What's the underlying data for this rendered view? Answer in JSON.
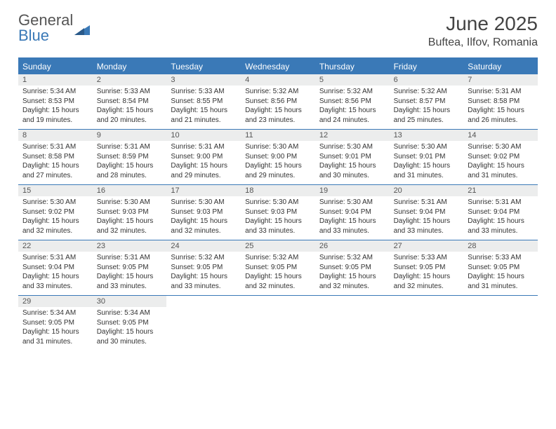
{
  "logo": {
    "word1": "General",
    "word2": "Blue"
  },
  "title": "June 2025",
  "location": "Buftea, Ilfov, Romania",
  "colors": {
    "header_bg": "#3a79b7",
    "header_text": "#ffffff",
    "daynum_bg": "#eceded",
    "border": "#3a79b7",
    "page_bg": "#ffffff",
    "text": "#333333"
  },
  "weekdays": [
    "Sunday",
    "Monday",
    "Tuesday",
    "Wednesday",
    "Thursday",
    "Friday",
    "Saturday"
  ],
  "weeks": [
    [
      {
        "n": "1",
        "sunrise": "Sunrise: 5:34 AM",
        "sunset": "Sunset: 8:53 PM",
        "d1": "Daylight: 15 hours",
        "d2": "and 19 minutes."
      },
      {
        "n": "2",
        "sunrise": "Sunrise: 5:33 AM",
        "sunset": "Sunset: 8:54 PM",
        "d1": "Daylight: 15 hours",
        "d2": "and 20 minutes."
      },
      {
        "n": "3",
        "sunrise": "Sunrise: 5:33 AM",
        "sunset": "Sunset: 8:55 PM",
        "d1": "Daylight: 15 hours",
        "d2": "and 21 minutes."
      },
      {
        "n": "4",
        "sunrise": "Sunrise: 5:32 AM",
        "sunset": "Sunset: 8:56 PM",
        "d1": "Daylight: 15 hours",
        "d2": "and 23 minutes."
      },
      {
        "n": "5",
        "sunrise": "Sunrise: 5:32 AM",
        "sunset": "Sunset: 8:56 PM",
        "d1": "Daylight: 15 hours",
        "d2": "and 24 minutes."
      },
      {
        "n": "6",
        "sunrise": "Sunrise: 5:32 AM",
        "sunset": "Sunset: 8:57 PM",
        "d1": "Daylight: 15 hours",
        "d2": "and 25 minutes."
      },
      {
        "n": "7",
        "sunrise": "Sunrise: 5:31 AM",
        "sunset": "Sunset: 8:58 PM",
        "d1": "Daylight: 15 hours",
        "d2": "and 26 minutes."
      }
    ],
    [
      {
        "n": "8",
        "sunrise": "Sunrise: 5:31 AM",
        "sunset": "Sunset: 8:58 PM",
        "d1": "Daylight: 15 hours",
        "d2": "and 27 minutes."
      },
      {
        "n": "9",
        "sunrise": "Sunrise: 5:31 AM",
        "sunset": "Sunset: 8:59 PM",
        "d1": "Daylight: 15 hours",
        "d2": "and 28 minutes."
      },
      {
        "n": "10",
        "sunrise": "Sunrise: 5:31 AM",
        "sunset": "Sunset: 9:00 PM",
        "d1": "Daylight: 15 hours",
        "d2": "and 29 minutes."
      },
      {
        "n": "11",
        "sunrise": "Sunrise: 5:30 AM",
        "sunset": "Sunset: 9:00 PM",
        "d1": "Daylight: 15 hours",
        "d2": "and 29 minutes."
      },
      {
        "n": "12",
        "sunrise": "Sunrise: 5:30 AM",
        "sunset": "Sunset: 9:01 PM",
        "d1": "Daylight: 15 hours",
        "d2": "and 30 minutes."
      },
      {
        "n": "13",
        "sunrise": "Sunrise: 5:30 AM",
        "sunset": "Sunset: 9:01 PM",
        "d1": "Daylight: 15 hours",
        "d2": "and 31 minutes."
      },
      {
        "n": "14",
        "sunrise": "Sunrise: 5:30 AM",
        "sunset": "Sunset: 9:02 PM",
        "d1": "Daylight: 15 hours",
        "d2": "and 31 minutes."
      }
    ],
    [
      {
        "n": "15",
        "sunrise": "Sunrise: 5:30 AM",
        "sunset": "Sunset: 9:02 PM",
        "d1": "Daylight: 15 hours",
        "d2": "and 32 minutes."
      },
      {
        "n": "16",
        "sunrise": "Sunrise: 5:30 AM",
        "sunset": "Sunset: 9:03 PM",
        "d1": "Daylight: 15 hours",
        "d2": "and 32 minutes."
      },
      {
        "n": "17",
        "sunrise": "Sunrise: 5:30 AM",
        "sunset": "Sunset: 9:03 PM",
        "d1": "Daylight: 15 hours",
        "d2": "and 32 minutes."
      },
      {
        "n": "18",
        "sunrise": "Sunrise: 5:30 AM",
        "sunset": "Sunset: 9:03 PM",
        "d1": "Daylight: 15 hours",
        "d2": "and 33 minutes."
      },
      {
        "n": "19",
        "sunrise": "Sunrise: 5:30 AM",
        "sunset": "Sunset: 9:04 PM",
        "d1": "Daylight: 15 hours",
        "d2": "and 33 minutes."
      },
      {
        "n": "20",
        "sunrise": "Sunrise: 5:31 AM",
        "sunset": "Sunset: 9:04 PM",
        "d1": "Daylight: 15 hours",
        "d2": "and 33 minutes."
      },
      {
        "n": "21",
        "sunrise": "Sunrise: 5:31 AM",
        "sunset": "Sunset: 9:04 PM",
        "d1": "Daylight: 15 hours",
        "d2": "and 33 minutes."
      }
    ],
    [
      {
        "n": "22",
        "sunrise": "Sunrise: 5:31 AM",
        "sunset": "Sunset: 9:04 PM",
        "d1": "Daylight: 15 hours",
        "d2": "and 33 minutes."
      },
      {
        "n": "23",
        "sunrise": "Sunrise: 5:31 AM",
        "sunset": "Sunset: 9:05 PM",
        "d1": "Daylight: 15 hours",
        "d2": "and 33 minutes."
      },
      {
        "n": "24",
        "sunrise": "Sunrise: 5:32 AM",
        "sunset": "Sunset: 9:05 PM",
        "d1": "Daylight: 15 hours",
        "d2": "and 33 minutes."
      },
      {
        "n": "25",
        "sunrise": "Sunrise: 5:32 AM",
        "sunset": "Sunset: 9:05 PM",
        "d1": "Daylight: 15 hours",
        "d2": "and 32 minutes."
      },
      {
        "n": "26",
        "sunrise": "Sunrise: 5:32 AM",
        "sunset": "Sunset: 9:05 PM",
        "d1": "Daylight: 15 hours",
        "d2": "and 32 minutes."
      },
      {
        "n": "27",
        "sunrise": "Sunrise: 5:33 AM",
        "sunset": "Sunset: 9:05 PM",
        "d1": "Daylight: 15 hours",
        "d2": "and 32 minutes."
      },
      {
        "n": "28",
        "sunrise": "Sunrise: 5:33 AM",
        "sunset": "Sunset: 9:05 PM",
        "d1": "Daylight: 15 hours",
        "d2": "and 31 minutes."
      }
    ],
    [
      {
        "n": "29",
        "sunrise": "Sunrise: 5:34 AM",
        "sunset": "Sunset: 9:05 PM",
        "d1": "Daylight: 15 hours",
        "d2": "and 31 minutes."
      },
      {
        "n": "30",
        "sunrise": "Sunrise: 5:34 AM",
        "sunset": "Sunset: 9:05 PM",
        "d1": "Daylight: 15 hours",
        "d2": "and 30 minutes."
      },
      null,
      null,
      null,
      null,
      null
    ]
  ]
}
